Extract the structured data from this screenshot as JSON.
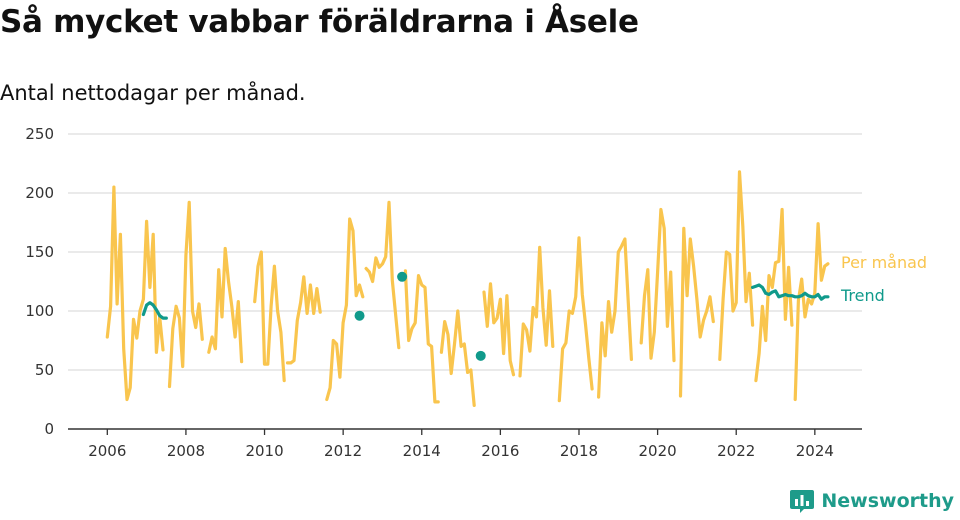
{
  "header": {
    "title": "Så mycket vabbar föräldrarna i Åsele",
    "subtitle": "Antal nettodagar per månad."
  },
  "brand": {
    "name": "Newsworthy",
    "icon": "newsworthy-logo-icon",
    "color": "#1e9b8a"
  },
  "colors": {
    "monthly": "#f9c54e",
    "trend": "#109a8b",
    "grid": "#dddddd",
    "axis": "#333333"
  },
  "chart_data": {
    "type": "line",
    "title": "Så mycket vabbar föräldrarna i Åsele",
    "subtitle": "Antal nettodagar per månad.",
    "xlabel": "",
    "ylabel": "",
    "xlim": [
      2005.0,
      2025.2
    ],
    "ylim": [
      0,
      250
    ],
    "x_ticks": [
      "2006",
      "2008",
      "2010",
      "2012",
      "2014",
      "2016",
      "2018",
      "2020",
      "2022",
      "2024"
    ],
    "y_ticks": [
      "0",
      "50",
      "100",
      "150",
      "200",
      "250"
    ],
    "grid": "horizontal",
    "legend": "right, at the end of each line",
    "series": [
      {
        "name": "Per månad",
        "color": "#f9c54e",
        "segments": [
          [
            [
              2006.0,
              78
            ],
            [
              2006.083,
              104
            ],
            [
              2006.167,
              205
            ],
            [
              2006.25,
              106
            ],
            [
              2006.333,
              165
            ],
            [
              2006.417,
              68
            ],
            [
              2006.5,
              25
            ],
            [
              2006.583,
              35
            ],
            [
              2006.667,
              93
            ],
            [
              2006.75,
              77
            ],
            [
              2006.833,
              100
            ],
            [
              2006.917,
              110
            ],
            [
              2007.0,
              176
            ],
            [
              2007.083,
              120
            ],
            [
              2007.167,
              165
            ],
            [
              2007.25,
              65
            ],
            [
              2007.333,
              95
            ],
            [
              2007.417,
              67
            ]
          ],
          [
            [
              2007.583,
              36
            ],
            [
              2007.667,
              85
            ],
            [
              2007.75,
              104
            ],
            [
              2007.833,
              94
            ],
            [
              2007.917,
              53
            ],
            [
              2008.0,
              147
            ],
            [
              2008.083,
              192
            ],
            [
              2008.167,
              100
            ],
            [
              2008.25,
              86
            ],
            [
              2008.333,
              106
            ],
            [
              2008.417,
              76
            ]
          ],
          [
            [
              2008.583,
              65
            ],
            [
              2008.667,
              78
            ],
            [
              2008.75,
              68
            ],
            [
              2008.833,
              135
            ],
            [
              2008.917,
              95
            ],
            [
              2009.0,
              153
            ],
            [
              2009.083,
              125
            ],
            [
              2009.167,
              104
            ],
            [
              2009.25,
              78
            ],
            [
              2009.333,
              108
            ],
            [
              2009.417,
              57
            ]
          ],
          [
            [
              2009.75,
              108
            ],
            [
              2009.833,
              138
            ],
            [
              2009.917,
              150
            ],
            [
              2010.0,
              55
            ],
            [
              2010.083,
              55
            ],
            [
              2010.167,
              104
            ],
            [
              2010.25,
              138
            ],
            [
              2010.333,
              100
            ],
            [
              2010.417,
              82
            ],
            [
              2010.5,
              41
            ]
          ],
          [
            [
              2010.583,
              56
            ],
            [
              2010.667,
              56
            ],
            [
              2010.75,
              58
            ],
            [
              2010.833,
              92
            ],
            [
              2010.917,
              107
            ],
            [
              2011.0,
              129
            ],
            [
              2011.083,
              98
            ],
            [
              2011.167,
              122
            ],
            [
              2011.25,
              98
            ],
            [
              2011.333,
              119
            ],
            [
              2011.417,
              99
            ]
          ],
          [
            [
              2011.583,
              25
            ],
            [
              2011.667,
              35
            ],
            [
              2011.75,
              75
            ],
            [
              2011.833,
              72
            ],
            [
              2011.917,
              44
            ],
            [
              2012.0,
              90
            ],
            [
              2012.083,
              105
            ],
            [
              2012.167,
              178
            ],
            [
              2012.25,
              168
            ],
            [
              2012.333,
              113
            ],
            [
              2012.417,
              122
            ],
            [
              2012.5,
              112
            ]
          ],
          [
            [
              2012.583,
              136
            ],
            [
              2012.667,
              133
            ],
            [
              2012.75,
              125
            ],
            [
              2012.833,
              145
            ],
            [
              2012.917,
              137
            ],
            [
              2013.0,
              140
            ],
            [
              2013.083,
              146
            ],
            [
              2013.167,
              192
            ],
            [
              2013.25,
              126
            ],
            [
              2013.333,
              98
            ],
            [
              2013.417,
              69
            ]
          ],
          [
            [
              2013.583,
              134
            ],
            [
              2013.667,
              75
            ],
            [
              2013.75,
              85
            ],
            [
              2013.833,
              90
            ],
            [
              2013.917,
              130
            ],
            [
              2014.0,
              122
            ],
            [
              2014.083,
              120
            ],
            [
              2014.167,
              72
            ],
            [
              2014.25,
              70
            ],
            [
              2014.333,
              23
            ],
            [
              2014.417,
              23
            ]
          ],
          [
            [
              2014.5,
              65
            ],
            [
              2014.583,
              91
            ],
            [
              2014.667,
              80
            ],
            [
              2014.75,
              47
            ],
            [
              2014.833,
              72
            ],
            [
              2014.917,
              100
            ],
            [
              2015.0,
              70
            ],
            [
              2015.083,
              72
            ],
            [
              2015.167,
              48
            ],
            [
              2015.25,
              50
            ],
            [
              2015.333,
              20
            ]
          ],
          [
            [
              2015.583,
              116
            ],
            [
              2015.667,
              87
            ],
            [
              2015.75,
              123
            ],
            [
              2015.833,
              90
            ],
            [
              2015.917,
              94
            ],
            [
              2016.0,
              110
            ],
            [
              2016.083,
              64
            ],
            [
              2016.167,
              113
            ],
            [
              2016.25,
              58
            ],
            [
              2016.333,
              46
            ]
          ],
          [
            [
              2016.5,
              45
            ],
            [
              2016.583,
              89
            ],
            [
              2016.667,
              84
            ],
            [
              2016.75,
              66
            ],
            [
              2016.833,
              103
            ],
            [
              2016.917,
              95
            ],
            [
              2017.0,
              154
            ],
            [
              2017.083,
              103
            ],
            [
              2017.167,
              71
            ],
            [
              2017.25,
              117
            ],
            [
              2017.333,
              70
            ]
          ],
          [
            [
              2017.5,
              24
            ],
            [
              2017.583,
              68
            ],
            [
              2017.667,
              73
            ],
            [
              2017.75,
              100
            ],
            [
              2017.833,
              98
            ],
            [
              2017.917,
              112
            ],
            [
              2018.0,
              162
            ],
            [
              2018.083,
              114
            ],
            [
              2018.167,
              88
            ],
            [
              2018.25,
              60
            ],
            [
              2018.333,
              34
            ]
          ],
          [
            [
              2018.5,
              27
            ],
            [
              2018.583,
              90
            ],
            [
              2018.667,
              62
            ],
            [
              2018.75,
              108
            ],
            [
              2018.833,
              82
            ],
            [
              2018.917,
              100
            ],
            [
              2019.0,
              150
            ],
            [
              2019.083,
              155
            ],
            [
              2019.167,
              161
            ],
            [
              2019.25,
              110
            ],
            [
              2019.333,
              59
            ]
          ],
          [
            [
              2019.583,
              73
            ],
            [
              2019.667,
              113
            ],
            [
              2019.75,
              135
            ],
            [
              2019.833,
              60
            ],
            [
              2019.917,
              82
            ],
            [
              2020.0,
              133
            ],
            [
              2020.083,
              186
            ],
            [
              2020.167,
              170
            ],
            [
              2020.25,
              87
            ],
            [
              2020.333,
              133
            ],
            [
              2020.417,
              58
            ]
          ],
          [
            [
              2020.583,
              28
            ],
            [
              2020.667,
              170
            ],
            [
              2020.75,
              113
            ],
            [
              2020.833,
              161
            ],
            [
              2020.917,
              138
            ],
            [
              2021.0,
              110
            ],
            [
              2021.083,
              78
            ],
            [
              2021.167,
              92
            ],
            [
              2021.25,
              100
            ],
            [
              2021.333,
              112
            ],
            [
              2021.417,
              91
            ]
          ],
          [
            [
              2021.583,
              59
            ],
            [
              2021.667,
              110
            ],
            [
              2021.75,
              150
            ],
            [
              2021.833,
              148
            ],
            [
              2021.917,
              100
            ],
            [
              2022.0,
              107
            ],
            [
              2022.083,
              218
            ],
            [
              2022.167,
              172
            ],
            [
              2022.25,
              108
            ],
            [
              2022.333,
              132
            ],
            [
              2022.417,
              88
            ]
          ],
          [
            [
              2022.5,
              41
            ],
            [
              2022.583,
              64
            ],
            [
              2022.667,
              104
            ],
            [
              2022.75,
              75
            ],
            [
              2022.833,
              130
            ],
            [
              2022.917,
              120
            ],
            [
              2023.0,
              141
            ],
            [
              2023.083,
              142
            ],
            [
              2023.167,
              186
            ],
            [
              2023.25,
              93
            ],
            [
              2023.333,
              137
            ],
            [
              2023.417,
              88
            ]
          ],
          [
            [
              2023.5,
              25
            ],
            [
              2023.583,
              109
            ],
            [
              2023.667,
              127
            ],
            [
              2023.75,
              95
            ],
            [
              2023.833,
              110
            ],
            [
              2023.917,
              106
            ],
            [
              2024.0,
              115
            ],
            [
              2024.083,
              174
            ],
            [
              2024.167,
              126
            ],
            [
              2024.25,
              138
            ],
            [
              2024.333,
              140
            ]
          ]
        ]
      },
      {
        "name": "Trend",
        "color": "#109a8b",
        "segments": [
          [
            [
              2006.917,
              97
            ],
            [
              2007.0,
              105
            ],
            [
              2007.083,
              107
            ],
            [
              2007.167,
              105
            ],
            [
              2007.25,
              101
            ],
            [
              2007.333,
              96
            ],
            [
              2007.417,
              94
            ],
            [
              2007.5,
              94
            ]
          ],
          [
            [
              2012.417,
              96
            ]
          ],
          [
            [
              2013.5,
              129
            ]
          ],
          [
            [
              2015.5,
              62
            ]
          ],
          [
            [
              2022.417,
              120
            ],
            [
              2022.5,
              121
            ],
            [
              2022.583,
              122
            ],
            [
              2022.667,
              120
            ],
            [
              2022.75,
              115
            ],
            [
              2022.833,
              114
            ],
            [
              2022.917,
              116
            ],
            [
              2023.0,
              117
            ],
            [
              2023.083,
              112
            ],
            [
              2023.167,
              113
            ],
            [
              2023.25,
              114
            ],
            [
              2023.333,
              113
            ],
            [
              2023.417,
              113
            ],
            [
              2023.5,
              112
            ],
            [
              2023.583,
              112
            ],
            [
              2023.667,
              113
            ],
            [
              2023.75,
              115
            ],
            [
              2023.833,
              113
            ],
            [
              2023.917,
              112
            ],
            [
              2024.0,
              112
            ],
            [
              2024.083,
              114
            ],
            [
              2024.167,
              110
            ],
            [
              2024.25,
              112
            ],
            [
              2024.333,
              112
            ]
          ]
        ]
      }
    ]
  }
}
